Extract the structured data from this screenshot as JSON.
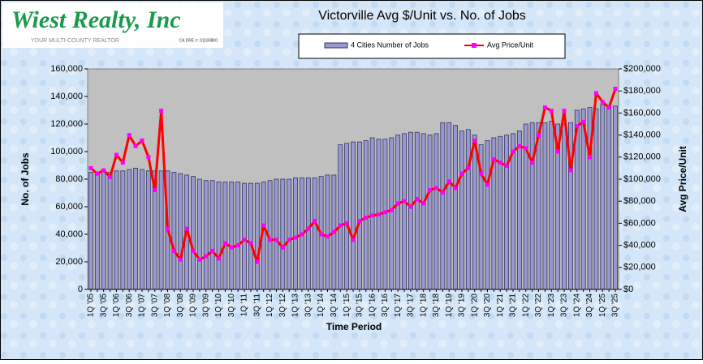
{
  "logo": {
    "name": "Wiest Realty, Inc",
    "tagline": "YOUR MULTI-COUNTY REALTOR",
    "license": "CA DRE #: 01183800"
  },
  "chart_data": {
    "type": "bar-line",
    "title": "Victorville Avg $/Unit vs. No. of Jobs",
    "x_label": "Time Period",
    "y_label": "No. of Jobs",
    "y2_label": "Avg Price/Unit",
    "categories": [
      "1Q '05",
      null,
      "3Q '05",
      null,
      "1Q '06",
      null,
      "3Q '06",
      null,
      "1Q '07",
      null,
      "3Q '07",
      null,
      "1Q '08",
      null,
      "3Q '08",
      null,
      "1Q '09",
      null,
      "3Q '09",
      null,
      "1Q '10",
      null,
      "3Q '10",
      null,
      "1Q '11",
      null,
      "3Q '11",
      null,
      "1Q '12",
      null,
      "3Q '12",
      null,
      "1Q '13",
      null,
      "3Q '13",
      null,
      "1Q '14",
      null,
      "3Q '14",
      null,
      "1Q '15",
      null,
      "3Q '15",
      null,
      "1Q '16",
      null,
      "3Q '16",
      null,
      "1Q '17",
      null,
      "3Q '17",
      null,
      "1Q '18",
      null,
      "3Q '18",
      null,
      "1Q '19",
      null,
      "3Q '19",
      null,
      "1Q '20",
      null,
      "3Q '20",
      null,
      "1Q '21",
      null,
      "3Q '21",
      null,
      "1Q '22",
      null,
      "3Q '22",
      null,
      "1Q '23",
      null,
      "3Q '23",
      null,
      "1Q '24",
      null,
      "3Q '24",
      null,
      "1Q '25",
      null,
      "3Q '25"
    ],
    "series": [
      {
        "name": "4 Cities Number of Jobs",
        "color": "#9999cc",
        "axis": "y",
        "values": [
          85000,
          84000,
          86000,
          85000,
          86000,
          86000,
          87000,
          88000,
          87000,
          86000,
          86000,
          86000,
          86000,
          85000,
          84000,
          83000,
          82000,
          80000,
          79000,
          79000,
          78000,
          78000,
          78000,
          78000,
          77000,
          77000,
          77000,
          78000,
          79000,
          80000,
          80000,
          80000,
          81000,
          81000,
          81000,
          81000,
          82000,
          83000,
          83000,
          105000,
          106000,
          107000,
          107000,
          108000,
          110000,
          109000,
          109000,
          110000,
          112000,
          113000,
          114000,
          114000,
          113000,
          112000,
          113000,
          121000,
          121000,
          119000,
          115000,
          116000,
          112000,
          105000,
          108000,
          110000,
          111000,
          112000,
          113000,
          115000,
          120000,
          121000,
          121000,
          121000,
          122000,
          120000,
          120000,
          121000,
          130000,
          131000,
          132000,
          131000,
          134000,
          133000,
          133000
        ]
      },
      {
        "name": "Avg Price/Unit",
        "color": "#ff0000",
        "marker_color": "#ff00ff",
        "axis": "y2",
        "values": [
          110000,
          105000,
          108000,
          102000,
          122000,
          115000,
          140000,
          130000,
          135000,
          120000,
          90000,
          162000,
          55000,
          35000,
          27000,
          55000,
          35000,
          27000,
          30000,
          35000,
          28000,
          42000,
          38000,
          40000,
          45000,
          42000,
          25000,
          58000,
          45000,
          45000,
          38000,
          45000,
          47000,
          50000,
          55000,
          62000,
          50000,
          48000,
          52000,
          58000,
          60000,
          45000,
          62000,
          65000,
          67000,
          68000,
          70000,
          72000,
          78000,
          80000,
          75000,
          82000,
          78000,
          90000,
          92000,
          88000,
          98000,
          92000,
          105000,
          110000,
          135000,
          105000,
          95000,
          118000,
          115000,
          112000,
          125000,
          130000,
          128000,
          115000,
          140000,
          165000,
          162000,
          125000,
          162000,
          108000,
          148000,
          152000,
          120000,
          178000,
          170000,
          165000,
          182000
        ]
      }
    ],
    "ylim": [
      0,
      160000
    ],
    "yticks": [
      0,
      {
        "value": 20000,
        "label": "20,000"
      },
      {
        "value": 40000,
        "label": "40,000"
      },
      {
        "value": 60000,
        "label": "60,000"
      },
      {
        "value": 80000,
        "label": "80,000"
      },
      {
        "value": 100000,
        "label": "100,000"
      },
      {
        "value": 120000,
        "label": "120,000"
      },
      {
        "value": 140000,
        "label": "140,000"
      },
      {
        "value": 160000,
        "label": "160,000"
      }
    ],
    "y2lim": [
      0,
      200000
    ],
    "y2ticks": [
      {
        "value": 0,
        "label": "$0"
      },
      {
        "value": 20000,
        "label": "$20,000"
      },
      {
        "value": 40000,
        "label": "$40,000"
      },
      {
        "value": 60000,
        "label": "$60,000"
      },
      {
        "value": 80000,
        "label": "$80,000"
      },
      {
        "value": 100000,
        "label": "$100,000"
      },
      {
        "value": 120000,
        "label": "$120,000"
      },
      {
        "value": 140000,
        "label": "$140,000"
      },
      {
        "value": 160000,
        "label": "$160,000"
      },
      {
        "value": 180000,
        "label": "$180,000"
      },
      {
        "value": 200000,
        "label": "$200,000"
      }
    ],
    "plot_background": "#c0c0c0"
  }
}
